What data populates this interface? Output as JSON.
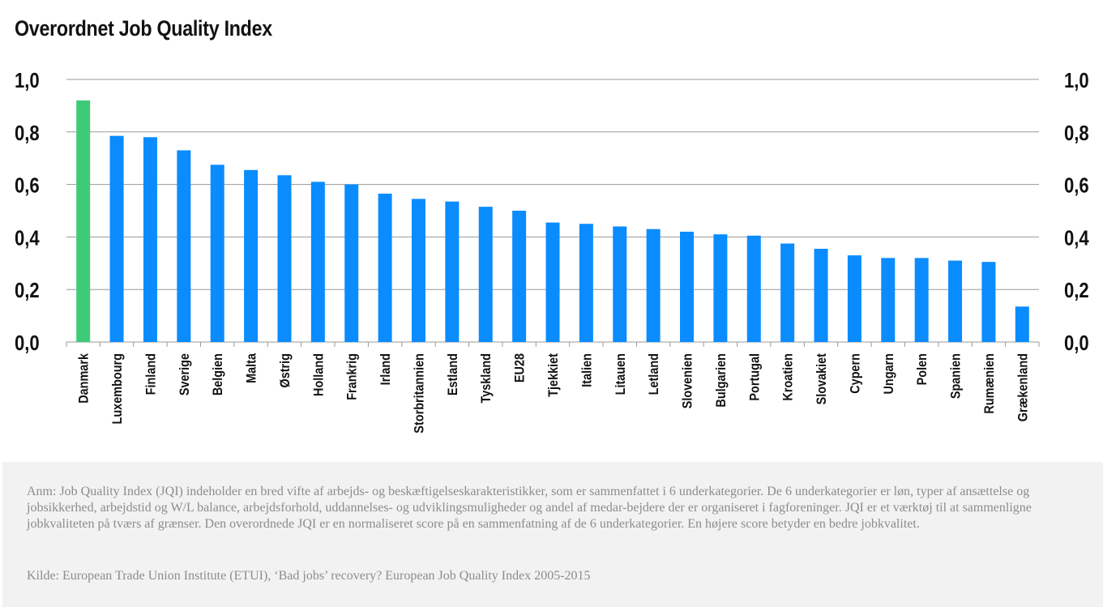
{
  "title": "Overordnet Job Quality Index",
  "chart_data": {
    "type": "bar",
    "title": "Overordnet Job Quality Index",
    "categories": [
      "Danmark",
      "Luxembourg",
      "Finland",
      "Sverige",
      "Belgien",
      "Malta",
      "Østrig",
      "Holland",
      "Frankrig",
      "Irland",
      "Storbritannien",
      "Estland",
      "Tyskland",
      "EU28",
      "Tjekkiet",
      "Italien",
      "Litauen",
      "Letland",
      "Slovenien",
      "Bulgarien",
      "Portugal",
      "Kroatien",
      "Slovakiet",
      "Cypern",
      "Ungarn",
      "Polen",
      "Spanien",
      "Rumænien",
      "Grækenland"
    ],
    "values": [
      0.92,
      0.785,
      0.78,
      0.73,
      0.675,
      0.655,
      0.635,
      0.61,
      0.6,
      0.565,
      0.545,
      0.535,
      0.515,
      0.5,
      0.455,
      0.45,
      0.44,
      0.43,
      0.42,
      0.41,
      0.405,
      0.375,
      0.355,
      0.33,
      0.32,
      0.32,
      0.31,
      0.305,
      0.135
    ],
    "highlight_category": "Danmark",
    "ylim": [
      0,
      1.0
    ],
    "yticks": [
      "0,0",
      "0,2",
      "0,4",
      "0,6",
      "0,8",
      "1,0"
    ],
    "xlabel": "",
    "ylabel": "",
    "grid": true,
    "colors": {
      "bar": "#0a8cff",
      "highlight": "#3ecb78",
      "grid": "#9a9a9a",
      "axis": "#9a9a9a",
      "text": "#111111"
    }
  },
  "note": "Anm: Job Quality Index (JQI) indeholder en bred vifte af arbejds- og beskæftigelseskarakteristikker, som er sammenfattet i 6 underkategorier. De 6 underkategorier er løn, typer af ansættelse og jobsikkerhed, arbejdstid og W/L balance, arbejdsforhold, uddannelses- og udviklingsmuligheder og andel af medar-bejdere der er organiseret i fagforeninger. JQI er et værktøj til at sammenligne jobkvaliteten på tværs af grænser. Den overordnede JQI er en normaliseret score på en sammenfatning af de 6 underkategorier. En højere score betyder en bedre jobkvalitet.",
  "source": "Kilde: European Trade Union Institute (ETUI), ‘Bad jobs’ recovery? European Job Quality Index 2005-2015"
}
